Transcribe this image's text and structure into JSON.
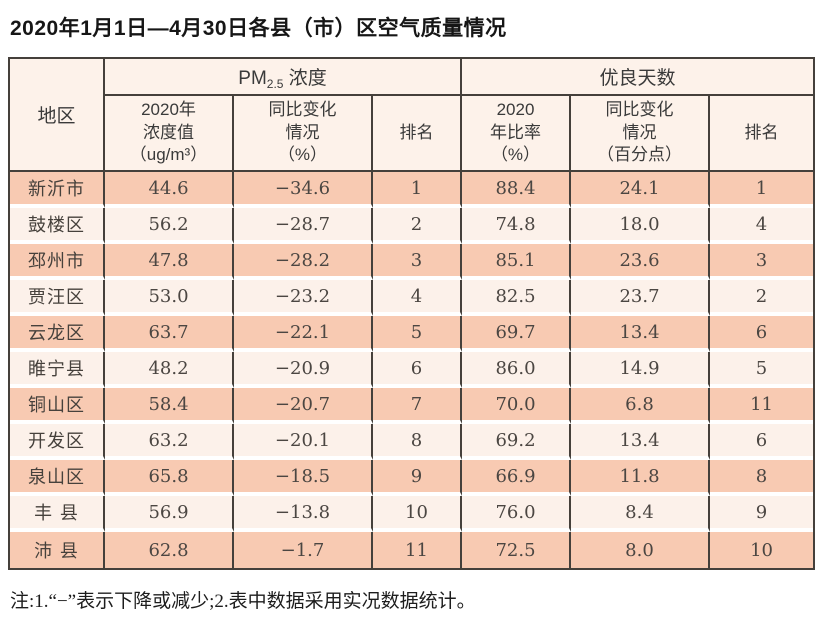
{
  "title": "2020年1月1日—4月30日各县（市）区空气质量情况",
  "table": {
    "header": {
      "region": "地区",
      "pm_group": {
        "prefix": "PM",
        "sub": "2.5",
        "suffix": " 浓度"
      },
      "good_days_group": "优良天数",
      "sub": [
        "2020年\n浓度值\n（ug/m³）",
        "同比变化\n情况\n（%）",
        "排名",
        "2020\n年比率\n（%）",
        "同比变化\n情况\n（百分点）",
        "排名"
      ]
    },
    "rows": [
      {
        "region": "新沂市",
        "pm_value": "44.6",
        "pm_change": "−34.6",
        "pm_rank": "1",
        "gd_rate": "88.4",
        "gd_change": "24.1",
        "gd_rank": "1"
      },
      {
        "region": "鼓楼区",
        "pm_value": "56.2",
        "pm_change": "−28.7",
        "pm_rank": "2",
        "gd_rate": "74.8",
        "gd_change": "18.0",
        "gd_rank": "4"
      },
      {
        "region": "邳州市",
        "pm_value": "47.8",
        "pm_change": "−28.2",
        "pm_rank": "3",
        "gd_rate": "85.1",
        "gd_change": "23.6",
        "gd_rank": "3"
      },
      {
        "region": "贾汪区",
        "pm_value": "53.0",
        "pm_change": "−23.2",
        "pm_rank": "4",
        "gd_rate": "82.5",
        "gd_change": "23.7",
        "gd_rank": "2"
      },
      {
        "region": "云龙区",
        "pm_value": "63.7",
        "pm_change": "−22.1",
        "pm_rank": "5",
        "gd_rate": "69.7",
        "gd_change": "13.4",
        "gd_rank": "6"
      },
      {
        "region": "睢宁县",
        "pm_value": "48.2",
        "pm_change": "−20.9",
        "pm_rank": "6",
        "gd_rate": "86.0",
        "gd_change": "14.9",
        "gd_rank": "5"
      },
      {
        "region": "铜山区",
        "pm_value": "58.4",
        "pm_change": "−20.7",
        "pm_rank": "7",
        "gd_rate": "70.0",
        "gd_change": "6.8",
        "gd_rank": "11"
      },
      {
        "region": "开发区",
        "pm_value": "63.2",
        "pm_change": "−20.1",
        "pm_rank": "8",
        "gd_rate": "69.2",
        "gd_change": "13.4",
        "gd_rank": "6"
      },
      {
        "region": "泉山区",
        "pm_value": "65.8",
        "pm_change": "−18.5",
        "pm_rank": "9",
        "gd_rate": "66.9",
        "gd_change": "11.8",
        "gd_rank": "8"
      },
      {
        "region": "丰 县",
        "pm_value": "56.9",
        "pm_change": "−13.8",
        "pm_rank": "10",
        "gd_rate": "76.0",
        "gd_change": "8.4",
        "gd_rank": "9"
      },
      {
        "region": "沛 县",
        "pm_value": "62.8",
        "pm_change": "−1.7",
        "pm_rank": "11",
        "gd_rate": "72.5",
        "gd_change": "8.0",
        "gd_rank": "10"
      }
    ]
  },
  "note": "注:1.“−”表示下降或减少;2.表中数据采用实况数据统计。",
  "colors": {
    "stripe_odd": "#f8cab2",
    "stripe_even": "#fcf1ea",
    "header_bg": "#fdf2ea",
    "border": "#45403b"
  }
}
